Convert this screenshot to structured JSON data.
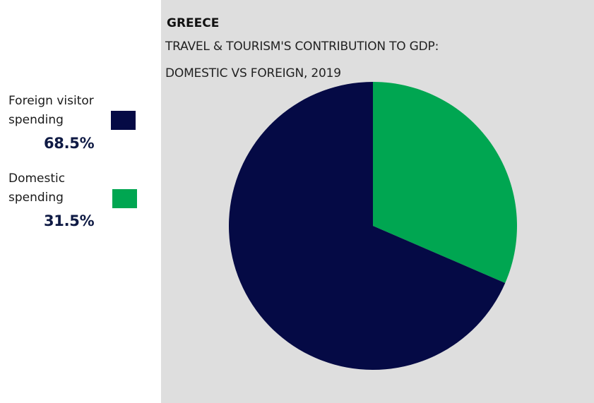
{
  "legend": {
    "foreign": {
      "label": "Foreign visitor spending",
      "value": "68.5%",
      "color": "#050a45"
    },
    "domestic": {
      "label": "Domestic spending",
      "value": "31.5%",
      "color": "#00a651"
    }
  },
  "chart_data": {
    "type": "pie",
    "title": "GREECE",
    "subtitle": "TRAVEL & TOURISM'S CONTRIBUTION TO GDP: DOMESTIC VS FOREIGN, 2019",
    "slices": [
      {
        "label": "Domestic spending",
        "value": 31.5,
        "color": "#00a651"
      },
      {
        "label": "Foreign visitor spending",
        "value": 68.5,
        "color": "#050a45"
      }
    ],
    "background": "#dedede"
  }
}
